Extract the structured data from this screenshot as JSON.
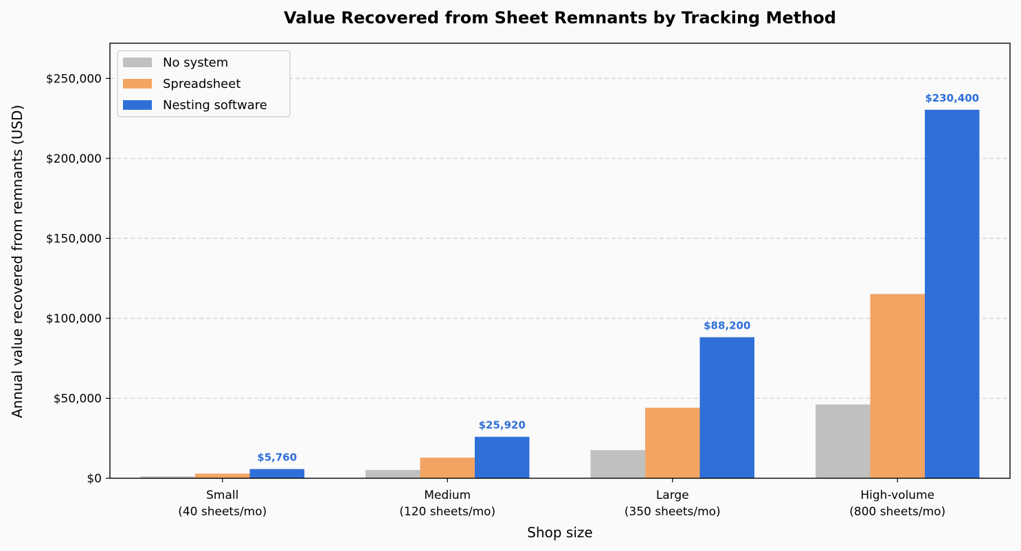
{
  "chart_data": {
    "type": "bar",
    "title": "Value Recovered from Sheet Remnants by Tracking Method",
    "xlabel": "Shop size",
    "ylabel": "Annual value recovered from remnants (USD)",
    "categories": [
      [
        "Small",
        "(40 sheets/mo)"
      ],
      [
        "Medium",
        "(120 sheets/mo)"
      ],
      [
        "Large",
        "(350 sheets/mo)"
      ],
      [
        "High-volume",
        "(800 sheets/mo)"
      ]
    ],
    "series": [
      {
        "name": "No system",
        "color": "#c0c0c0",
        "values": [
          1150,
          5200,
          17600,
          46100
        ]
      },
      {
        "name": "Spreadsheet",
        "color": "#f4a462",
        "values": [
          2900,
          12900,
          44100,
          115200
        ]
      },
      {
        "name": "Nesting software",
        "color": "#2f6fd8",
        "values": [
          5760,
          25920,
          88200,
          230400
        ]
      }
    ],
    "data_labels": [
      {
        "series": 2,
        "category": 0,
        "text": "$5,760"
      },
      {
        "series": 2,
        "category": 1,
        "text": "$25,920"
      },
      {
        "series": 2,
        "category": 2,
        "text": "$88,200"
      },
      {
        "series": 2,
        "category": 3,
        "text": "$230,400"
      }
    ],
    "data_label_color": "#2f6fd8",
    "yticks": [
      {
        "value": 0,
        "label": "$0"
      },
      {
        "value": 50000,
        "label": "$50,000"
      },
      {
        "value": 100000,
        "label": "$100,000"
      },
      {
        "value": 150000,
        "label": "$150,000"
      },
      {
        "value": 200000,
        "label": "$200,000"
      },
      {
        "value": 250000,
        "label": "$250,000"
      }
    ],
    "ylim": [
      0,
      272000
    ],
    "grid": "y-dashed",
    "legend_position": "top-left"
  }
}
